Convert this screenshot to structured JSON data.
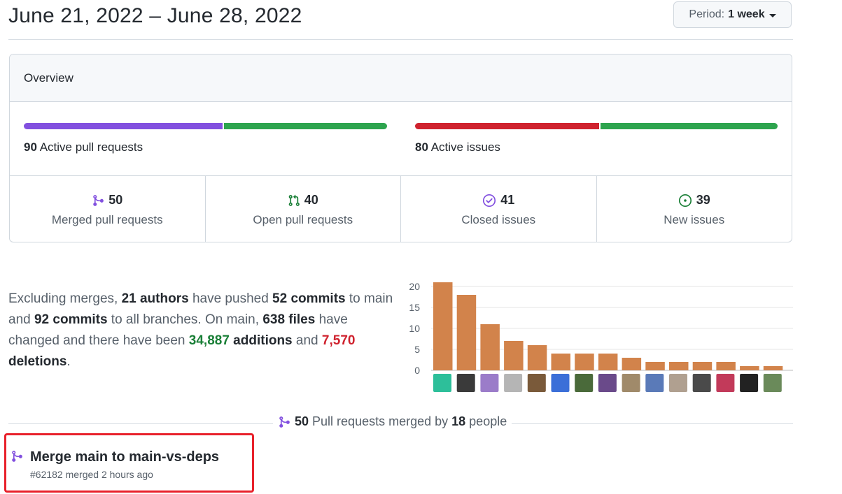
{
  "header": {
    "date_range": "June 21, 2022 – June 28, 2022",
    "period_label": "Period:",
    "period_value": "1 week"
  },
  "overview": {
    "title": "Overview",
    "pull_requests": {
      "count": "90",
      "label": "Active pull requests",
      "merged_fraction": 0.55,
      "colors": [
        "#8250df",
        "#2da44e"
      ]
    },
    "issues": {
      "count": "80",
      "label": "Active issues",
      "closed_fraction": 0.51,
      "colors": [
        "#cf222e",
        "#2da44e"
      ]
    },
    "stats": [
      {
        "icon": "merged-pr-icon",
        "value": "50",
        "label": "Merged pull requests",
        "color": "#8250df"
      },
      {
        "icon": "open-pr-icon",
        "value": "40",
        "label": "Open pull requests",
        "color": "#1a7f37"
      },
      {
        "icon": "closed-issue-icon",
        "value": "41",
        "label": "Closed issues",
        "color": "#8250df"
      },
      {
        "icon": "new-issue-icon",
        "value": "39",
        "label": "New issues",
        "color": "#1a7f37"
      }
    ]
  },
  "summary": {
    "t1": "Excluding merges, ",
    "authors": "21 authors",
    "t2": " have pushed ",
    "commits_main": "52 commits",
    "t3": " to main and ",
    "commits_all": "92 commits",
    "t4": " to all branches. On main, ",
    "files": "638 files",
    "t5": " have changed and there have been ",
    "additions_num": "34,887",
    "additions_word": " additions",
    "t6": " and ",
    "deletions_num": "7,570",
    "deletions_word": " deletions",
    "t7": "."
  },
  "chart_data": {
    "type": "bar",
    "categories": [
      "author-1",
      "author-2",
      "author-3",
      "author-4",
      "author-5",
      "author-6",
      "author-7",
      "author-8",
      "author-9",
      "author-10",
      "author-11",
      "author-12",
      "author-13",
      "author-14",
      "author-15"
    ],
    "values": [
      21,
      18,
      11,
      7,
      6,
      4,
      4,
      4,
      3,
      2,
      2,
      2,
      2,
      1,
      1
    ],
    "yticks": [
      "0",
      "5",
      "10",
      "15",
      "20"
    ],
    "ylim": [
      0,
      21
    ],
    "grid": true,
    "bar_color": "#d2834b",
    "avatar_colors": [
      "#2dbf9a",
      "#3a3a3a",
      "#9b7cc9",
      "#b5b5b5",
      "#7a5a3a",
      "#3b6fd8",
      "#4a6a3a",
      "#6a4a8a",
      "#a08a6a",
      "#5a7ab8",
      "#b0a090",
      "#4a4a4a",
      "#c23a5a",
      "#222222",
      "#6a8a5a"
    ]
  },
  "merged_section": {
    "count": "50",
    "text_mid": " Pull requests merged by ",
    "people_count": "18",
    "text_end": " people"
  },
  "pr_item": {
    "title": "Merge main to main-vs-deps",
    "meta": "#62182 merged 2 hours ago"
  }
}
